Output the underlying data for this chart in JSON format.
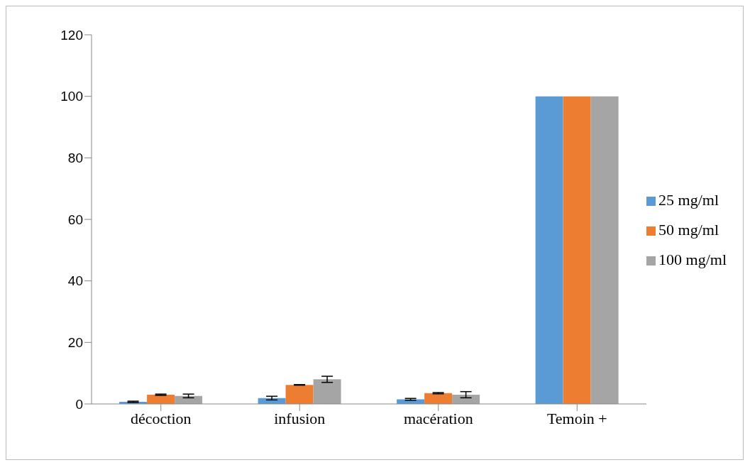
{
  "chart_data": {
    "type": "bar",
    "categories": [
      "décoction",
      "infusion",
      "macération",
      "Temoin +"
    ],
    "series": [
      {
        "name": "25 mg/ml",
        "color": "#5b9bd5",
        "values": [
          0.7,
          1.9,
          1.5,
          100
        ],
        "errors": [
          0.2,
          0.6,
          0.3,
          null
        ]
      },
      {
        "name": "50 mg/ml",
        "color": "#ed7d31",
        "values": [
          3.0,
          6.2,
          3.5,
          100
        ],
        "errors": [
          0.2,
          0.1,
          0.2,
          null
        ]
      },
      {
        "name": "100 mg/ml",
        "color": "#a5a5a5",
        "values": [
          2.6,
          8.0,
          3.0,
          100
        ],
        "errors": [
          0.6,
          1.0,
          1.0,
          null
        ]
      }
    ],
    "ylim": [
      0,
      120
    ],
    "yticks": [
      0,
      20,
      40,
      60,
      80,
      100,
      120
    ],
    "grid": false,
    "legend": "right"
  }
}
